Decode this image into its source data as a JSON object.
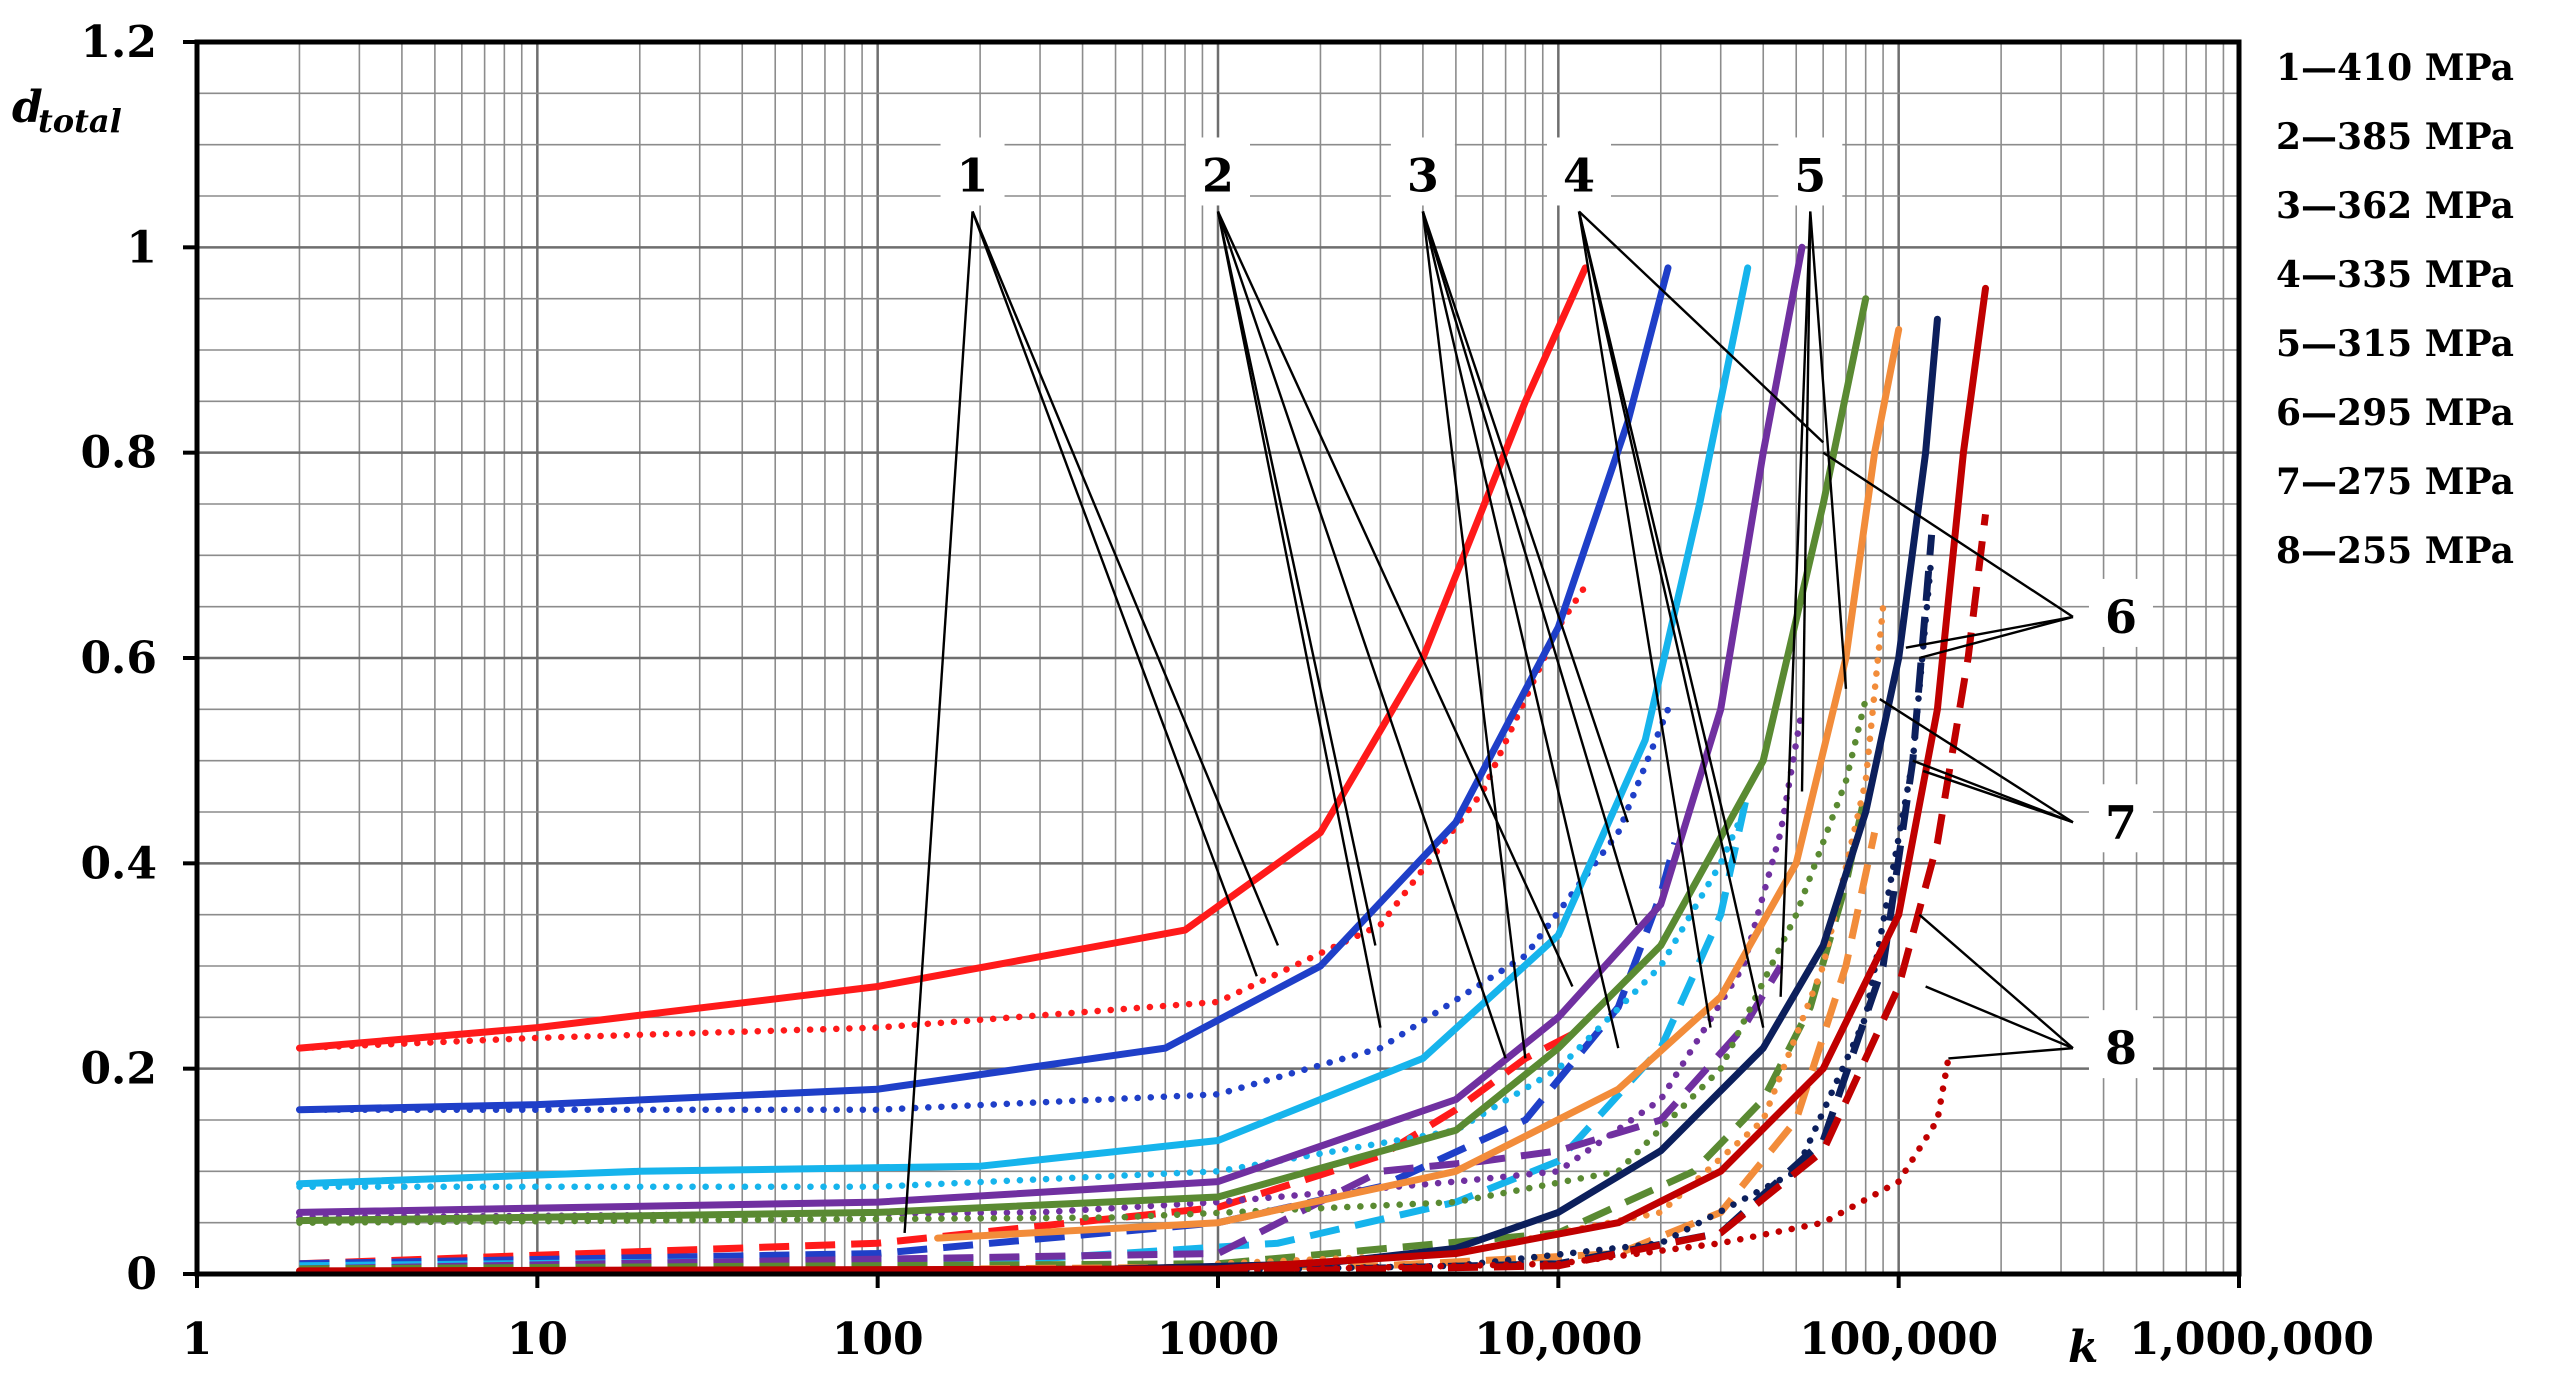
{
  "chart_data": {
    "type": "line",
    "title": "",
    "xlabel": "k",
    "ylabel_main": "d",
    "ylabel_sub": "total",
    "x_scale": "log",
    "xlim": [
      1,
      1000000
    ],
    "ylim": [
      0,
      1.2
    ],
    "grid": true,
    "x_ticks": [
      {
        "value": 1,
        "label": "1"
      },
      {
        "value": 10,
        "label": "10"
      },
      {
        "value": 100,
        "label": "100"
      },
      {
        "value": 1000,
        "label": "1000"
      },
      {
        "value": 10000,
        "label": "10,000"
      },
      {
        "value": 100000,
        "label": "100,000"
      },
      {
        "value": 1000000,
        "label": "1,000,000"
      }
    ],
    "y_ticks": [
      {
        "value": 0,
        "label": "0"
      },
      {
        "value": 0.2,
        "label": "0.2"
      },
      {
        "value": 0.4,
        "label": "0.4"
      },
      {
        "value": 0.6,
        "label": "0.6"
      },
      {
        "value": 0.8,
        "label": "0.8"
      },
      {
        "value": 1,
        "label": "1"
      },
      {
        "value": 1.2,
        "label": "1.2"
      }
    ],
    "legend": [
      {
        "id": "1",
        "text": "1—410 MPa",
        "color": "#ff1a1a"
      },
      {
        "id": "2",
        "text": "2—385 MPa",
        "color": "#1f3fc8"
      },
      {
        "id": "3",
        "text": "3—362 MPa",
        "color": "#16b4ec"
      },
      {
        "id": "4",
        "text": "4—335 MPa",
        "color": "#7030a0"
      },
      {
        "id": "5",
        "text": "5—315 MPa",
        "color": "#5a8a32"
      },
      {
        "id": "6",
        "text": "6—295 MPa",
        "color": "#f28c3a"
      },
      {
        "id": "7",
        "text": "7—275 MPa",
        "color": "#0c1f5c"
      },
      {
        "id": "8",
        "text": "8—255 MPa",
        "color": "#c00000"
      }
    ],
    "legend_placement": "right",
    "series": [
      {
        "name": "1—410 MPa solid",
        "color": "#ff1a1a",
        "style": "solid",
        "points": [
          [
            2,
            0.22
          ],
          [
            10,
            0.24
          ],
          [
            100,
            0.28
          ],
          [
            800,
            0.335
          ],
          [
            2000,
            0.43
          ],
          [
            4000,
            0.6
          ],
          [
            8000,
            0.85
          ],
          [
            12000,
            0.98
          ]
        ]
      },
      {
        "name": "1—410 MPa dotted",
        "color": "#ff1a1a",
        "style": "dotted",
        "points": [
          [
            2,
            0.22
          ],
          [
            10,
            0.23
          ],
          [
            100,
            0.24
          ],
          [
            1000,
            0.265
          ],
          [
            3000,
            0.34
          ],
          [
            6000,
            0.47
          ],
          [
            10000,
            0.63
          ],
          [
            12000,
            0.67
          ]
        ]
      },
      {
        "name": "1—410 MPa dashed",
        "color": "#ff1a1a",
        "style": "dashed",
        "points": [
          [
            2,
            0.01
          ],
          [
            100,
            0.03
          ],
          [
            1000,
            0.065
          ],
          [
            3000,
            0.115
          ],
          [
            5000,
            0.16
          ],
          [
            8000,
            0.21
          ],
          [
            12000,
            0.24
          ]
        ]
      },
      {
        "name": "2—385 MPa solid",
        "color": "#1f3fc8",
        "style": "solid",
        "points": [
          [
            2,
            0.16
          ],
          [
            10,
            0.165
          ],
          [
            100,
            0.18
          ],
          [
            700,
            0.22
          ],
          [
            2000,
            0.3
          ],
          [
            5000,
            0.44
          ],
          [
            10000,
            0.63
          ],
          [
            16000,
            0.83
          ],
          [
            21000,
            0.98
          ]
        ]
      },
      {
        "name": "2—385 MPa dotted",
        "color": "#1f3fc8",
        "style": "dotted",
        "points": [
          [
            2,
            0.16
          ],
          [
            10,
            0.16
          ],
          [
            100,
            0.16
          ],
          [
            1000,
            0.175
          ],
          [
            3000,
            0.22
          ],
          [
            8000,
            0.31
          ],
          [
            15000,
            0.43
          ],
          [
            21000,
            0.55
          ]
        ]
      },
      {
        "name": "2—385 MPa dashed",
        "color": "#1f3fc8",
        "style": "dashed",
        "points": [
          [
            2,
            0.01
          ],
          [
            100,
            0.02
          ],
          [
            1000,
            0.05
          ],
          [
            3000,
            0.085
          ],
          [
            8000,
            0.15
          ],
          [
            15000,
            0.26
          ],
          [
            20000,
            0.37
          ],
          [
            22000,
            0.42
          ]
        ]
      },
      {
        "name": "3—362 MPa solid",
        "color": "#16b4ec",
        "style": "solid",
        "points": [
          [
            2,
            0.088
          ],
          [
            20,
            0.1
          ],
          [
            200,
            0.105
          ],
          [
            1000,
            0.13
          ],
          [
            4000,
            0.21
          ],
          [
            10000,
            0.33
          ],
          [
            18000,
            0.52
          ],
          [
            26000,
            0.75
          ],
          [
            36000,
            0.98
          ]
        ]
      },
      {
        "name": "3—362 MPa dotted",
        "color": "#16b4ec",
        "style": "dotted",
        "points": [
          [
            2,
            0.085
          ],
          [
            100,
            0.085
          ],
          [
            1000,
            0.1
          ],
          [
            5000,
            0.14
          ],
          [
            10000,
            0.2
          ],
          [
            20000,
            0.3
          ],
          [
            30000,
            0.4
          ],
          [
            35000,
            0.45
          ]
        ]
      },
      {
        "name": "3—362 MPa dashed",
        "color": "#16b4ec",
        "style": "dashed",
        "points": [
          [
            2,
            0.008
          ],
          [
            300,
            0.015
          ],
          [
            1500,
            0.03
          ],
          [
            5000,
            0.07
          ],
          [
            10000,
            0.11
          ],
          [
            20000,
            0.22
          ],
          [
            30000,
            0.35
          ],
          [
            36000,
            0.47
          ]
        ]
      },
      {
        "name": "4—335 MPa solid",
        "color": "#7030a0",
        "style": "solid",
        "points": [
          [
            2,
            0.06
          ],
          [
            100,
            0.07
          ],
          [
            1000,
            0.09
          ],
          [
            5000,
            0.17
          ],
          [
            10000,
            0.25
          ],
          [
            20000,
            0.36
          ],
          [
            30000,
            0.55
          ],
          [
            40000,
            0.8
          ],
          [
            52000,
            1.0
          ]
        ]
      },
      {
        "name": "4—335 MPa dotted",
        "color": "#7030a0",
        "style": "dotted",
        "points": [
          [
            2,
            0.055
          ],
          [
            300,
            0.06
          ],
          [
            1000,
            0.07
          ],
          [
            5000,
            0.09
          ],
          [
            10000,
            0.1
          ],
          [
            20000,
            0.17
          ],
          [
            35000,
            0.3
          ],
          [
            45000,
            0.43
          ],
          [
            52000,
            0.55
          ]
        ]
      },
      {
        "name": "4—335 MPa dashed",
        "color": "#7030a0",
        "style": "dashed",
        "points": [
          [
            2,
            0.005
          ],
          [
            1000,
            0.02
          ],
          [
            3000,
            0.1
          ],
          [
            6000,
            0.11
          ],
          [
            10000,
            0.12
          ],
          [
            20000,
            0.15
          ],
          [
            35000,
            0.24
          ],
          [
            45000,
            0.3
          ]
        ]
      },
      {
        "name": "5—315 MPa solid",
        "color": "#5a8a32",
        "style": "solid",
        "points": [
          [
            2,
            0.052
          ],
          [
            100,
            0.06
          ],
          [
            1000,
            0.075
          ],
          [
            5000,
            0.14
          ],
          [
            10000,
            0.22
          ],
          [
            20000,
            0.32
          ],
          [
            40000,
            0.5
          ],
          [
            60000,
            0.75
          ],
          [
            80000,
            0.95
          ]
        ]
      },
      {
        "name": "5—315 MPa dotted",
        "color": "#5a8a32",
        "style": "dotted",
        "points": [
          [
            2,
            0.05
          ],
          [
            500,
            0.055
          ],
          [
            5000,
            0.07
          ],
          [
            15000,
            0.1
          ],
          [
            30000,
            0.2
          ],
          [
            50000,
            0.35
          ],
          [
            70000,
            0.48
          ],
          [
            80000,
            0.56
          ]
        ]
      },
      {
        "name": "5—315 MPa dashed",
        "color": "#5a8a32",
        "style": "dashed",
        "points": [
          [
            2,
            0.005
          ],
          [
            1000,
            0.01
          ],
          [
            10000,
            0.04
          ],
          [
            25000,
            0.1
          ],
          [
            40000,
            0.17
          ],
          [
            55000,
            0.26
          ],
          [
            70000,
            0.38
          ],
          [
            80000,
            0.47
          ]
        ]
      },
      {
        "name": "6—295 MPa solid",
        "color": "#f28c3a",
        "style": "solid",
        "points": [
          [
            150,
            0.035
          ],
          [
            1000,
            0.05
          ],
          [
            5000,
            0.1
          ],
          [
            15000,
            0.18
          ],
          [
            30000,
            0.27
          ],
          [
            50000,
            0.4
          ],
          [
            70000,
            0.6
          ],
          [
            85000,
            0.8
          ],
          [
            100000,
            0.92
          ]
        ]
      },
      {
        "name": "6—295 MPa dotted",
        "color": "#f28c3a",
        "style": "dotted",
        "points": [
          [
            1000,
            0.01
          ],
          [
            5000,
            0.02
          ],
          [
            20000,
            0.06
          ],
          [
            40000,
            0.15
          ],
          [
            60000,
            0.3
          ],
          [
            80000,
            0.48
          ],
          [
            90000,
            0.65
          ]
        ]
      },
      {
        "name": "6—295 MPa dashed",
        "color": "#f28c3a",
        "style": "dashed",
        "points": [
          [
            200,
            0.005
          ],
          [
            3000,
            0.008
          ],
          [
            15000,
            0.02
          ],
          [
            30000,
            0.06
          ],
          [
            50000,
            0.15
          ],
          [
            70000,
            0.3
          ],
          [
            85000,
            0.43
          ]
        ]
      },
      {
        "name": "7—275 MPa solid",
        "color": "#0c1f5c",
        "style": "solid",
        "points": [
          [
            500,
            0.005
          ],
          [
            2000,
            0.01
          ],
          [
            5000,
            0.025
          ],
          [
            10000,
            0.06
          ],
          [
            20000,
            0.12
          ],
          [
            40000,
            0.22
          ],
          [
            60000,
            0.32
          ],
          [
            80000,
            0.45
          ],
          [
            100000,
            0.6
          ],
          [
            120000,
            0.8
          ],
          [
            130000,
            0.93
          ]
        ]
      },
      {
        "name": "7—275 MPa dotted",
        "color": "#0c1f5c",
        "style": "dotted",
        "points": [
          [
            500,
            0.002
          ],
          [
            5000,
            0.008
          ],
          [
            20000,
            0.03
          ],
          [
            50000,
            0.1
          ],
          [
            80000,
            0.25
          ],
          [
            110000,
            0.5
          ],
          [
            125000,
            0.7
          ]
        ]
      },
      {
        "name": "7—275 MPa dashed",
        "color": "#0c1f5c",
        "style": "dashed",
        "points": [
          [
            1000,
            0.002
          ],
          [
            10000,
            0.01
          ],
          [
            30000,
            0.04
          ],
          [
            60000,
            0.13
          ],
          [
            90000,
            0.3
          ],
          [
            110000,
            0.5
          ],
          [
            125000,
            0.72
          ]
        ]
      },
      {
        "name": "8—255 MPa solid",
        "color": "#c00000",
        "style": "solid",
        "points": [
          [
            2,
            0.003
          ],
          [
            1000,
            0.005
          ],
          [
            5000,
            0.02
          ],
          [
            15000,
            0.05
          ],
          [
            30000,
            0.1
          ],
          [
            60000,
            0.2
          ],
          [
            100000,
            0.35
          ],
          [
            130000,
            0.55
          ],
          [
            155000,
            0.8
          ],
          [
            180000,
            0.96
          ]
        ]
      },
      {
        "name": "8—255 MPa dotted",
        "color": "#c00000",
        "style": "dotted",
        "points": [
          [
            1000,
            0.003
          ],
          [
            10000,
            0.01
          ],
          [
            30000,
            0.03
          ],
          [
            60000,
            0.05
          ],
          [
            100000,
            0.09
          ],
          [
            130000,
            0.15
          ],
          [
            140000,
            0.21
          ]
        ]
      },
      {
        "name": "8—255 MPa dashed",
        "color": "#c00000",
        "style": "dashed",
        "points": [
          [
            1000,
            0.002
          ],
          [
            10000,
            0.008
          ],
          [
            30000,
            0.04
          ],
          [
            60000,
            0.12
          ],
          [
            100000,
            0.28
          ],
          [
            130000,
            0.42
          ],
          [
            160000,
            0.6
          ],
          [
            180000,
            0.74
          ]
        ]
      }
    ],
    "annotations": [
      {
        "label": "1",
        "anchor": [
          190,
          1.07
        ],
        "targets": [
          [
            1500,
            0.32
          ],
          [
            1300,
            0.29
          ],
          [
            120,
            0.04
          ]
        ]
      },
      {
        "label": "2",
        "anchor": [
          1000,
          1.07
        ],
        "targets": [
          [
            3000,
            0.24
          ],
          [
            2900,
            0.32
          ],
          [
            7000,
            0.21
          ],
          [
            11000,
            0.28
          ]
        ]
      },
      {
        "label": "3",
        "anchor": [
          4000,
          1.07
        ],
        "targets": [
          [
            8000,
            0.21
          ],
          [
            15000,
            0.22
          ],
          [
            17000,
            0.34
          ],
          [
            16000,
            0.44
          ]
        ]
      },
      {
        "label": "4",
        "anchor": [
          11500,
          1.07
        ],
        "targets": [
          [
            28000,
            0.24
          ],
          [
            33000,
            0.4
          ],
          [
            40000,
            0.24
          ],
          [
            60000,
            0.81
          ]
        ]
      },
      {
        "label": "5",
        "anchor": [
          55000,
          1.07
        ],
        "targets": [
          [
            45000,
            0.27
          ],
          [
            52000,
            0.47
          ],
          [
            70000,
            0.57
          ]
        ]
      },
      {
        "label": "6",
        "anchor": [
          450000,
          0.64
        ],
        "targets": [
          [
            60000,
            0.8
          ],
          [
            105000,
            0.61
          ],
          [
            115000,
            0.6
          ]
        ]
      },
      {
        "label": "7",
        "anchor": [
          450000,
          0.44
        ],
        "targets": [
          [
            88000,
            0.56
          ],
          [
            110000,
            0.5
          ],
          [
            118000,
            0.49
          ]
        ]
      },
      {
        "label": "8",
        "anchor": [
          450000,
          0.22
        ],
        "targets": [
          [
            115000,
            0.35
          ],
          [
            120000,
            0.28
          ],
          [
            140000,
            0.21
          ]
        ]
      }
    ]
  }
}
